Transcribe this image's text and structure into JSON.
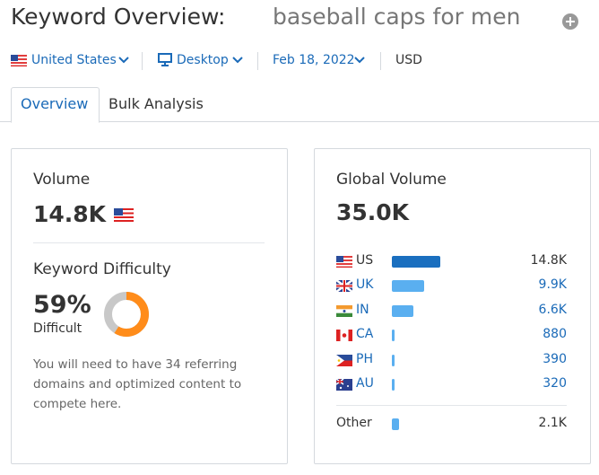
{
  "header": {
    "title": "Keyword Overview:",
    "keyword": "baseball caps for men"
  },
  "filters": {
    "country": "United States",
    "device": "Desktop",
    "date": "Feb 18, 2022",
    "currency": "USD"
  },
  "tabs": [
    "Overview",
    "Bulk Analysis"
  ],
  "volume": {
    "label": "Volume",
    "value": "14.8K"
  },
  "difficulty": {
    "label": "Keyword Difficulty",
    "percent": 59,
    "percent_label": "59%",
    "level": "Difficult",
    "note": "You will need to have 34 referring domains and optimized content to compete here."
  },
  "global": {
    "label": "Global Volume",
    "total": 35000,
    "total_label": "35.0K",
    "countries": [
      {
        "code": "US",
        "value": 14800,
        "label": "14.8K"
      },
      {
        "code": "UK",
        "value": 9900,
        "label": "9.9K"
      },
      {
        "code": "IN",
        "value": 6600,
        "label": "6.6K"
      },
      {
        "code": "CA",
        "value": 880,
        "label": "880"
      },
      {
        "code": "PH",
        "value": 390,
        "label": "390"
      },
      {
        "code": "AU",
        "value": 320,
        "label": "320"
      }
    ],
    "other": {
      "name": "Other",
      "value": 2100,
      "label": "2.1K"
    }
  }
}
